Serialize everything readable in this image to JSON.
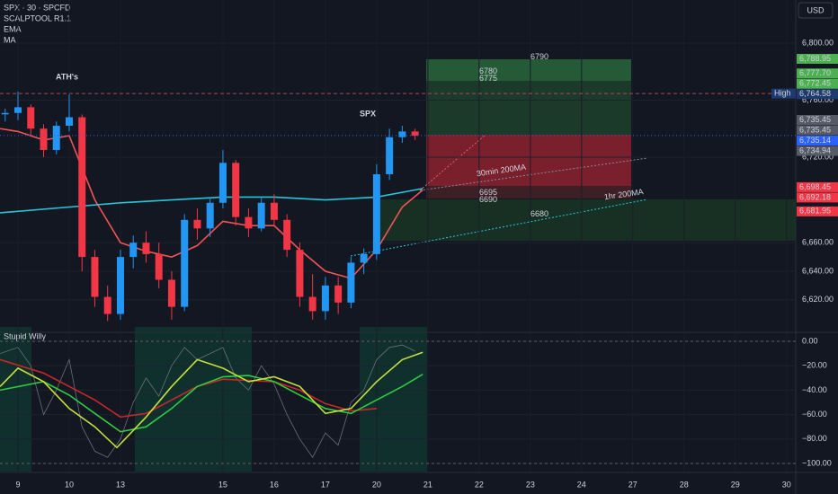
{
  "chart_data": [
    {
      "type": "candlestick",
      "title": "SPX · 30 · SPCFD",
      "indicator": "SCALPTOOL R1.1",
      "currency": "USD",
      "up_color": "#2196f3",
      "down_color": "#f23645",
      "xlim": [
        -0.351,
        15.18
      ],
      "xticks": [
        {
          "value": 0,
          "label": "9"
        },
        {
          "value": 1,
          "label": "10"
        },
        {
          "value": 2,
          "label": "13"
        },
        {
          "value": 4,
          "label": "15"
        },
        {
          "value": 5,
          "label": "16"
        },
        {
          "value": 6,
          "label": "17"
        },
        {
          "value": 7,
          "label": "20"
        },
        {
          "value": 8,
          "label": "21"
        },
        {
          "value": 9,
          "label": "22"
        },
        {
          "value": 10,
          "label": "23"
        },
        {
          "value": 11,
          "label": "24"
        },
        {
          "value": 12,
          "label": "27"
        },
        {
          "value": 13,
          "label": "28"
        },
        {
          "value": 14,
          "label": "29"
        },
        {
          "value": 15,
          "label": "30"
        }
      ],
      "ylim": [
        6598.4,
        6830.2
      ],
      "yticks": [
        {
          "value": 6800,
          "label": "6,800.00"
        },
        {
          "value": 6760,
          "label": "6,760.00"
        },
        {
          "value": 6720,
          "label": "6,720.00"
        },
        {
          "value": 6660,
          "label": "6,660.00"
        },
        {
          "value": 6640,
          "label": "6,640.00"
        },
        {
          "value": 6620,
          "label": "6,620.00"
        }
      ],
      "x": [
        -0.25,
        0,
        0.25,
        0.5,
        0.75,
        1,
        1.25,
        1.5,
        1.75,
        2,
        2.25,
        2.5,
        2.75,
        3,
        3.25,
        3.5,
        3.75,
        4,
        4.25,
        4.5,
        4.75,
        5,
        5.25,
        5.5,
        5.75,
        6,
        6.25,
        6.5,
        6.75,
        7,
        7.25,
        7.5,
        7.75
      ],
      "open": [
        6750,
        6751,
        6755,
        6740,
        6725,
        6742,
        6748,
        6650,
        6622,
        6610,
        6650,
        6660,
        6652,
        6634,
        6615,
        6676,
        6670,
        6688,
        6716,
        6678,
        6670,
        6688,
        6676,
        6655,
        6622,
        6612,
        6630,
        6618,
        6646,
        6652,
        6708,
        6734,
        6738
      ],
      "high": [
        6754,
        6766,
        6757,
        6743,
        6745,
        6764,
        6750,
        6655,
        6630,
        6655,
        6665,
        6668,
        6660,
        6640,
        6680,
        6684,
        6692,
        6725,
        6718,
        6684,
        6692,
        6694,
        6680,
        6660,
        6638,
        6636,
        6636,
        6650,
        6656,
        6715,
        6740,
        6742,
        6740
      ],
      "low": [
        6745,
        6746,
        6735,
        6720,
        6722,
        6738,
        6640,
        6615,
        6605,
        6606,
        6642,
        6646,
        6628,
        6606,
        6612,
        6662,
        6664,
        6684,
        6672,
        6664,
        6668,
        6672,
        6650,
        6615,
        6606,
        6606,
        6610,
        6614,
        6638,
        6648,
        6704,
        6730,
        6732
      ],
      "close": [
        6751,
        6755,
        6740,
        6725,
        6742,
        6748,
        6650,
        6622,
        6610,
        6650,
        6660,
        6652,
        6634,
        6615,
        6676,
        6670,
        6688,
        6716,
        6678,
        6670,
        6688,
        6676,
        6655,
        6622,
        6612,
        6630,
        6618,
        6646,
        6652,
        6708,
        6734,
        6738,
        6735
      ],
      "series": [
        {
          "name": "EMA",
          "color": "#f05454",
          "x": [
            -0.35,
            0,
            0.5,
            1,
            1.5,
            2,
            2.5,
            3,
            3.5,
            4,
            4.5,
            5,
            5.5,
            6,
            6.5,
            7,
            7.5,
            7.9
          ],
          "values": [
            6740,
            6738,
            6732,
            6735,
            6690,
            6660,
            6654,
            6650,
            6658,
            6675,
            6672,
            6672,
            6655,
            6640,
            6635,
            6655,
            6685,
            6697
          ]
        },
        {
          "name": "MA",
          "color": "#26c6da",
          "x": [
            -0.35,
            1,
            2,
            3,
            4,
            5,
            6,
            7,
            7.9
          ],
          "values": [
            6681,
            6685,
            6688,
            6690,
            6692,
            6692,
            6690,
            6692,
            6698
          ]
        }
      ],
      "annotations": [
        {
          "text": "ATH's",
          "color": "#f5d547"
        },
        {
          "text": "SPX",
          "color": "#ffffff"
        },
        {
          "text": "30min 200MA",
          "color": "#8a8f9c"
        },
        {
          "text": "1hr 200MA",
          "color": "#26c6da"
        }
      ],
      "trade_levels": [
        6790,
        6780,
        6775,
        6695,
        6690,
        6680
      ],
      "price_tags": [
        {
          "value": 6788.95,
          "label": "6,788.95",
          "color": "#4caf50"
        },
        {
          "value": 6777.7,
          "label": "6,777.70",
          "color": "#4caf50"
        },
        {
          "value": 6772.45,
          "label": "6,772.45",
          "color": "#4caf50"
        },
        {
          "value": 6764.58,
          "label": "6,764.58",
          "color": "#1e3a6e",
          "name": "High"
        },
        {
          "value": 6735.45,
          "label": "6,735.45",
          "color": "#555a66"
        },
        {
          "value": 6735.45,
          "label": "6,735.45",
          "color": "#555a66"
        },
        {
          "value": 6735.14,
          "label": "6,735.14",
          "color": "#2962ff"
        },
        {
          "value": 6734.94,
          "label": "6,734.94",
          "color": "#555a66"
        },
        {
          "value": 6698.45,
          "label": "6,698.45",
          "color": "#f23645"
        },
        {
          "value": 6692.18,
          "label": "6,692.18",
          "color": "#f23645"
        },
        {
          "value": 6681.95,
          "label": "6,681.95",
          "color": "#f23645"
        }
      ]
    },
    {
      "type": "line",
      "title": "Stupid Willy",
      "xlim": [
        -0.351,
        15.18
      ],
      "ylim": [
        -106.6,
        5.9
      ],
      "yticks": [
        {
          "value": 0,
          "label": "0.00"
        },
        {
          "value": -20,
          "label": "−20.00"
        },
        {
          "value": -40,
          "label": "−40.00"
        },
        {
          "value": -60,
          "label": "−60.00"
        },
        {
          "value": -80,
          "label": "−80.00"
        },
        {
          "value": -100,
          "label": "−100.00"
        }
      ],
      "series": [
        {
          "color": "#6b6f7a",
          "x": [
            -0.35,
            0,
            0.25,
            0.5,
            0.75,
            1,
            1.25,
            1.5,
            1.75,
            2,
            2.25,
            2.5,
            2.75,
            3,
            3.25,
            3.5,
            3.75,
            4,
            4.25,
            4.5,
            4.75,
            5,
            5.25,
            5.5,
            5.75,
            6,
            6.25,
            6.5,
            6.75,
            7,
            7.25,
            7.5,
            7.75
          ],
          "values": [
            -10,
            -5,
            -20,
            -60,
            -40,
            -15,
            -70,
            -90,
            -95,
            -80,
            -50,
            -30,
            -45,
            -20,
            -5,
            -15,
            -10,
            -5,
            -30,
            -40,
            -20,
            -35,
            -60,
            -80,
            -95,
            -75,
            -85,
            -50,
            -40,
            -15,
            -5,
            -3,
            -8
          ]
        },
        {
          "color": "#c62828",
          "x": [
            -0.35,
            0.5,
            1,
            1.5,
            2,
            2.5,
            3,
            3.5,
            4,
            5,
            5.5,
            6,
            6.5,
            7
          ],
          "values": [
            -15,
            -26,
            -37,
            -48,
            -62,
            -59,
            -48,
            -37,
            -31,
            -33,
            -40,
            -51,
            -57,
            -55
          ]
        },
        {
          "color": "#2ecc40",
          "x": [
            -0.35,
            0.5,
            1,
            1.5,
            2,
            2.5,
            3,
            3.5,
            4,
            4.5,
            5,
            5.5,
            6,
            6.5,
            7,
            7.5,
            7.9
          ],
          "values": [
            -40,
            -33,
            -44,
            -59,
            -74,
            -70,
            -55,
            -37,
            -29,
            -28,
            -33,
            -44,
            -55,
            -59,
            -48,
            -37,
            -27
          ]
        },
        {
          "color": "#c6e03b",
          "x": [
            -0.35,
            0,
            0.5,
            1,
            1.5,
            1.93,
            2.5,
            3,
            3.5,
            4,
            4.5,
            5,
            5.5,
            6,
            6.5,
            7,
            7.5,
            7.9
          ],
          "values": [
            -37,
            -22,
            -33,
            -55,
            -70,
            -87,
            -62,
            -37,
            -15,
            -22,
            -33,
            -29,
            -37,
            -59,
            -55,
            -33,
            -15,
            -9
          ]
        }
      ]
    }
  ]
}
